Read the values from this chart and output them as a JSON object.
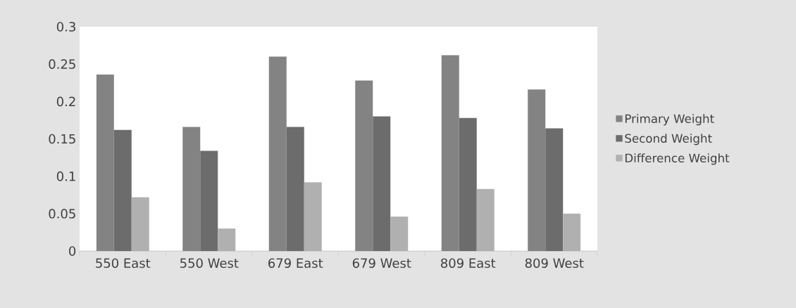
{
  "chart_data": {
    "type": "bar",
    "categories": [
      "550 East",
      "550 West",
      "679 East",
      "679 West",
      "809 East",
      "809 West"
    ],
    "series": [
      {
        "name": "Primary Weight",
        "color": "#838383",
        "values": [
          0.236,
          0.166,
          0.26,
          0.228,
          0.262,
          0.216
        ]
      },
      {
        "name": "Second Weight",
        "color": "#6c6c6c",
        "values": [
          0.162,
          0.134,
          0.166,
          0.18,
          0.178,
          0.164
        ]
      },
      {
        "name": "Difference Weight",
        "color": "#b0b0b0",
        "values": [
          0.072,
          0.03,
          0.092,
          0.046,
          0.083,
          0.05
        ]
      }
    ],
    "ylim": [
      0,
      0.3
    ],
    "yticks": [
      0,
      0.05,
      0.1,
      0.15,
      0.2,
      0.25,
      0.3
    ],
    "grid": false,
    "legend": "right"
  }
}
